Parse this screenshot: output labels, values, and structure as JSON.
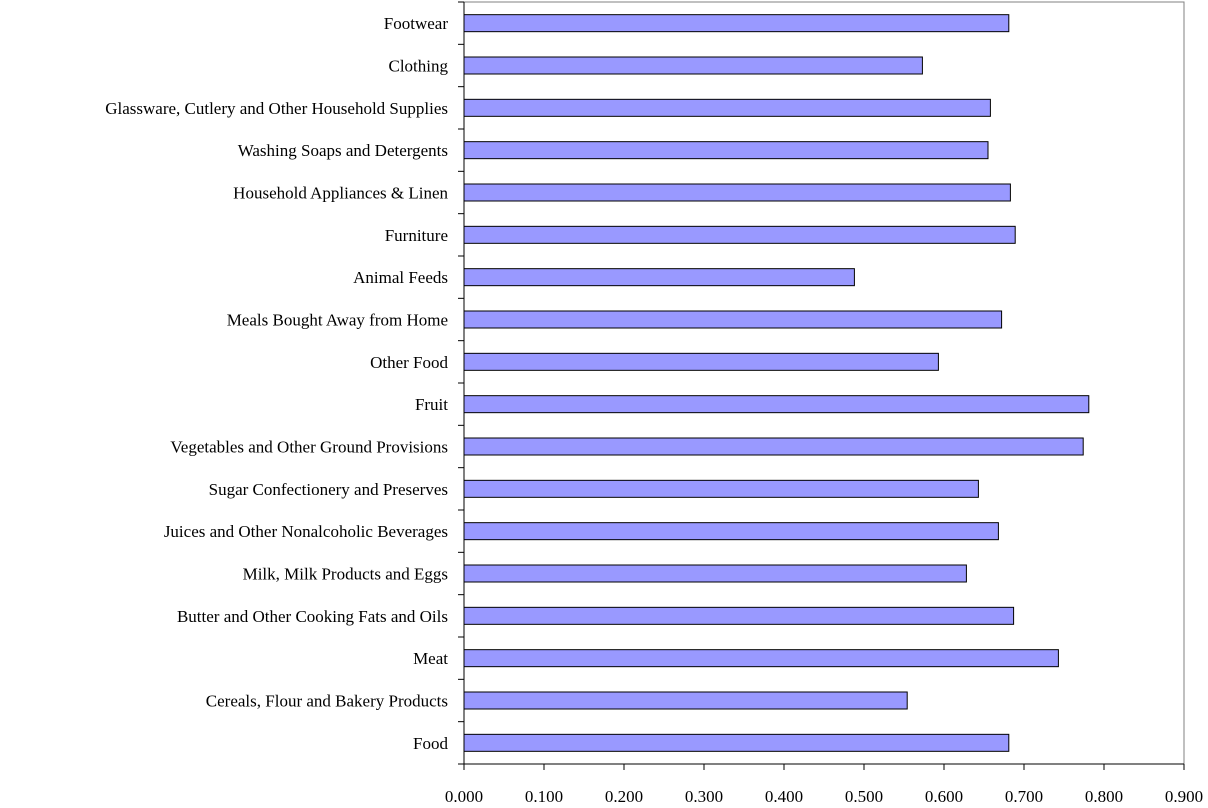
{
  "chart_data": {
    "type": "bar",
    "orientation": "horizontal",
    "categories": [
      "Footwear",
      "Clothing",
      "Glassware, Cutlery and Other Household Supplies",
      "Washing Soaps and Detergents",
      "Household Appliances & Linen",
      "Furniture",
      "Animal Feeds",
      "Meals Bought Away from Home",
      "Other Food",
      "Fruit",
      "Vegetables and Other Ground Provisions",
      "Sugar Confectionery and Preserves",
      "Juices and Other Nonalcoholic Beverages",
      "Milk, Milk Products and Eggs",
      "Butter and Other Cooking Fats and Oils",
      "Meat",
      "Cereals, Flour and Bakery Products",
      "Food"
    ],
    "values": [
      0.681,
      0.573,
      0.658,
      0.655,
      0.683,
      0.689,
      0.488,
      0.672,
      0.593,
      0.781,
      0.774,
      0.643,
      0.668,
      0.628,
      0.687,
      0.743,
      0.554,
      0.681
    ],
    "xlim": [
      0,
      0.9
    ],
    "x_ticks": [
      "0.000",
      "0.100",
      "0.200",
      "0.300",
      "0.400",
      "0.500",
      "0.600",
      "0.700",
      "0.800",
      "0.900"
    ],
    "title": "",
    "xlabel": "",
    "ylabel": "",
    "grid": false,
    "legend": "none",
    "colors": {
      "bar_fill": "#9999ff",
      "bar_stroke": "#000000",
      "axis": "#000000",
      "frame": "#808080",
      "background": "#ffffff"
    }
  }
}
